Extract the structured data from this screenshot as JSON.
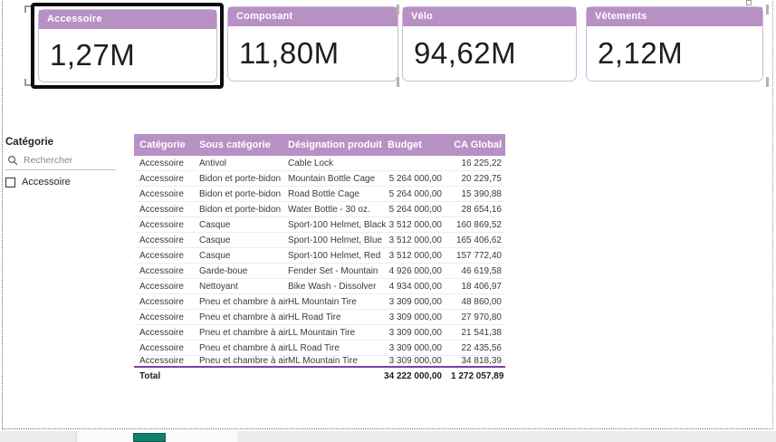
{
  "cards": [
    {
      "title": "Accessoire",
      "value": "1,27M",
      "selected": true
    },
    {
      "title": "Composant",
      "value": "11,80M",
      "selected": false
    },
    {
      "title": "Vélo",
      "value": "94,62M",
      "selected": false
    },
    {
      "title": "Vêtements",
      "value": "2,12M",
      "selected": false
    }
  ],
  "slicer": {
    "title": "Catégorie",
    "search_placeholder": "Rechercher",
    "items": [
      {
        "label": "Accessoire",
        "checked": false
      }
    ]
  },
  "table": {
    "headers": [
      "Catégorie",
      "Sous catégorie",
      "Désignation produit",
      "Budget",
      "CA Global"
    ],
    "rows": [
      [
        "Accessoire",
        "Antivol",
        "Cable Lock",
        "",
        "16 225,22"
      ],
      [
        "Accessoire",
        "Bidon et porte-bidon",
        "Mountain Bottle Cage",
        "5 264 000,00",
        "20 229,75"
      ],
      [
        "Accessoire",
        "Bidon et porte-bidon",
        "Road Bottle Cage",
        "5 264 000,00",
        "15 390,88"
      ],
      [
        "Accessoire",
        "Bidon et porte-bidon",
        "Water Bottle - 30 oz.",
        "5 264 000,00",
        "28 654,16"
      ],
      [
        "Accessoire",
        "Casque",
        "Sport-100 Helmet, Black",
        "3 512 000,00",
        "160 869,52"
      ],
      [
        "Accessoire",
        "Casque",
        "Sport-100 Helmet, Blue",
        "3 512 000,00",
        "165 406,62"
      ],
      [
        "Accessoire",
        "Casque",
        "Sport-100 Helmet, Red",
        "3 512 000,00",
        "157 772,40"
      ],
      [
        "Accessoire",
        "Garde-boue",
        "Fender Set - Mountain",
        "4 926 000,00",
        "46 619,58"
      ],
      [
        "Accessoire",
        "Nettoyant",
        "Bike Wash - Dissolver",
        "4 934 000,00",
        "18 406,97"
      ],
      [
        "Accessoire",
        "Pneu et chambre à air",
        "HL Mountain Tire",
        "3 309 000,00",
        "48 860,00"
      ],
      [
        "Accessoire",
        "Pneu et chambre à air",
        "HL Road Tire",
        "3 309 000,00",
        "27 970,80"
      ],
      [
        "Accessoire",
        "Pneu et chambre à air",
        "LL Mountain Tire",
        "3 309 000,00",
        "21 541,38"
      ],
      [
        "Accessoire",
        "Pneu et chambre à air",
        "LL Road Tire",
        "3 309 000,00",
        "22 435,56"
      ],
      [
        "Accessoire",
        "Pneu et chambre à air",
        "ML Mountain Tire",
        "3 309 000,00",
        "34 818,39"
      ]
    ],
    "total": {
      "label": "Total",
      "budget": "34 222 000,00",
      "ca_global": "1 272 057,89"
    }
  },
  "colors": {
    "accent_purple": "#b790c4",
    "divider_purple": "#7d3fa0",
    "selection_black": "#0d0d0d",
    "teal_indicator": "#12816b"
  }
}
